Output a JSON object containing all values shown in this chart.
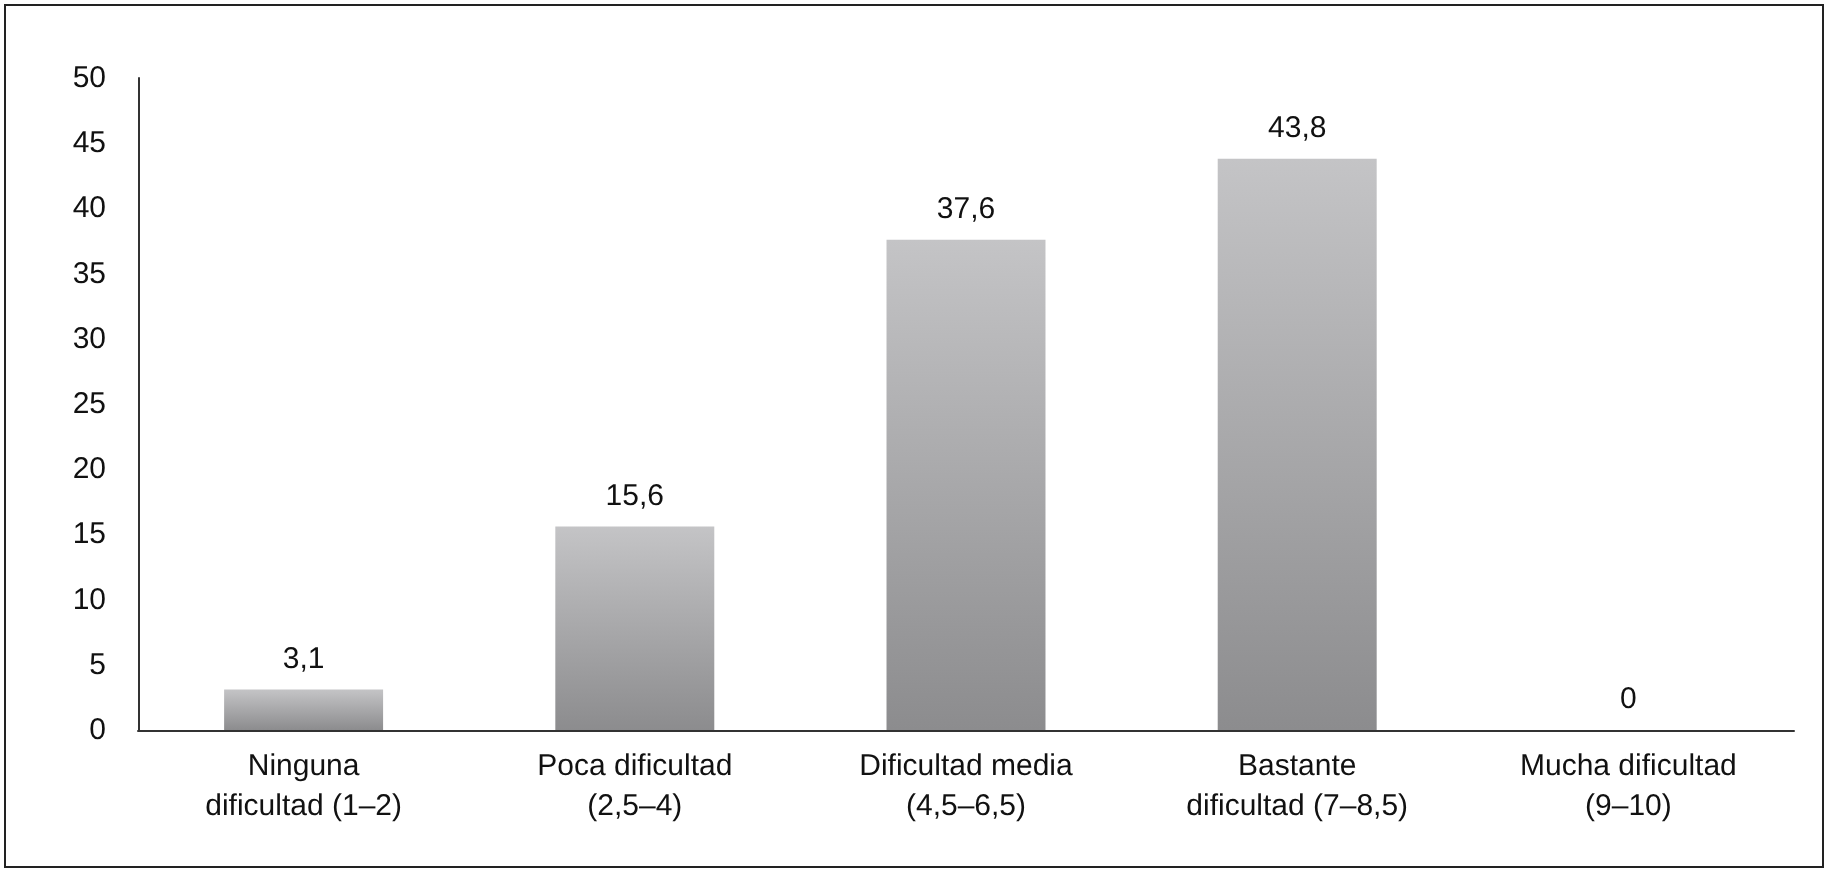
{
  "chart_data": {
    "type": "bar",
    "categories": [
      "Ninguna dificultad (1–2)",
      "Poca dificultad (2,5–4)",
      "Dificultad media (4,5–6,5)",
      "Bastante dificultad (7–8,5)",
      "Mucha dificultad (9–10)"
    ],
    "values": [
      3.1,
      15.6,
      37.6,
      43.8,
      0
    ],
    "value_labels": [
      "3,1",
      "15,6",
      "37,6",
      "43,8",
      "0"
    ],
    "color": "#8c8c8e",
    "ylim": [
      0,
      50
    ],
    "yticks": [
      0,
      5,
      10,
      15,
      20,
      25,
      30,
      35,
      40,
      45,
      50
    ],
    "grid": false
  }
}
